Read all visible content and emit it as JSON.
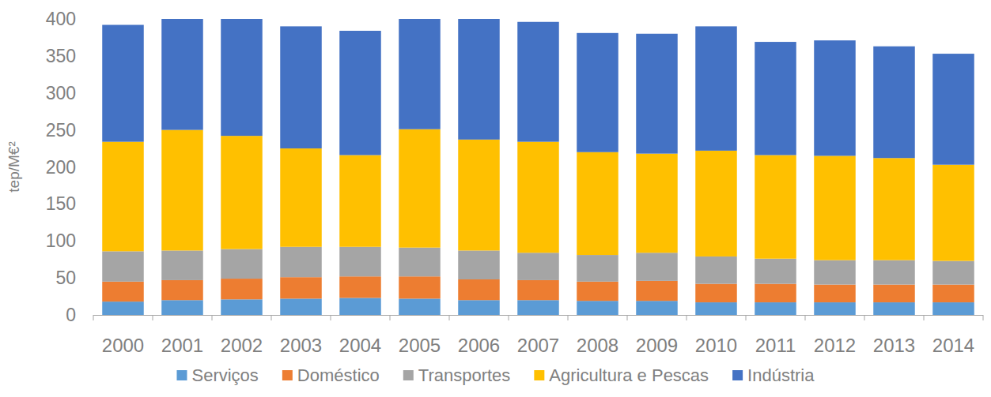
{
  "chart_data": {
    "type": "bar",
    "stacked": true,
    "grid": false,
    "legend": "bottom",
    "y_label": "tep/M€²",
    "categories": [
      "2000",
      "2001",
      "2002",
      "2003",
      "2004",
      "2005",
      "2006",
      "2007",
      "2008",
      "2009",
      "2010",
      "2011",
      "2012",
      "2013",
      "2014"
    ],
    "ylim": [
      0,
      400
    ],
    "yticks": [
      0,
      50,
      100,
      150,
      200,
      250,
      300,
      350,
      400
    ],
    "series": [
      {
        "name": "Serviços",
        "color": "#5b9bd5",
        "values": [
          18,
          20,
          21,
          22,
          23,
          22,
          20,
          20,
          19,
          19,
          17,
          17,
          17,
          17,
          17
        ]
      },
      {
        "name": "Doméstico",
        "color": "#ed7d31",
        "values": [
          27,
          27,
          28,
          29,
          29,
          30,
          28,
          27,
          26,
          27,
          25,
          25,
          24,
          24,
          24
        ]
      },
      {
        "name": "Transportes",
        "color": "#a5a5a5",
        "values": [
          41,
          40,
          40,
          41,
          40,
          39,
          39,
          37,
          36,
          38,
          37,
          34,
          33,
          33,
          32
        ]
      },
      {
        "name": "Agricultura e Pescas",
        "color": "#ffc000",
        "values": [
          148,
          163,
          153,
          133,
          124,
          160,
          150,
          150,
          139,
          134,
          143,
          140,
          141,
          138,
          130
        ]
      },
      {
        "name": "Indústria",
        "color": "#4472c4",
        "values": [
          158,
          150,
          158,
          165,
          168,
          149,
          163,
          162,
          161,
          162,
          168,
          153,
          156,
          151,
          150
        ]
      }
    ]
  }
}
